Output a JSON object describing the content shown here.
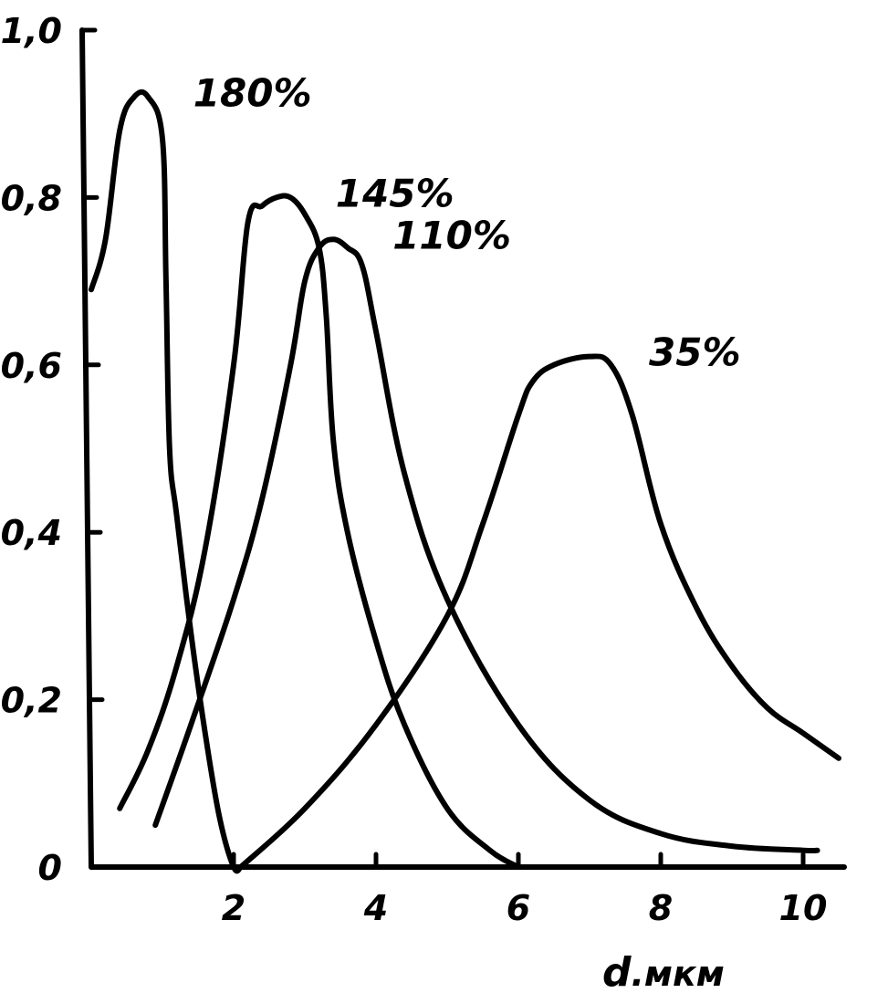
{
  "chart_data": {
    "type": "line",
    "xlabel": "d, мкм",
    "xlabel_letter": "d",
    "xlabel_unit": ".мкм",
    "ylabel": "",
    "xlim": [
      0,
      10.5
    ],
    "ylim": [
      0,
      1.0
    ],
    "grid": false,
    "x_ticks": [
      2,
      4,
      6,
      8,
      10
    ],
    "x_tick_labels": [
      "2",
      "4",
      "6",
      "8",
      "10"
    ],
    "y_ticks": [
      0,
      0.2,
      0.4,
      0.6,
      0.8,
      1.0
    ],
    "y_tick_labels": [
      "0",
      "0,2",
      "0,4",
      "0,6",
      "0,8",
      "1,0"
    ],
    "series": [
      {
        "name": "180%",
        "x": [
          0.0,
          0.2,
          0.4,
          0.6,
          0.8,
          1.0,
          1.05,
          1.1,
          1.2,
          1.4,
          1.6,
          1.8,
          2.0,
          2.1
        ],
        "y": [
          0.69,
          0.75,
          0.88,
          0.92,
          0.92,
          0.87,
          0.7,
          0.5,
          0.42,
          0.28,
          0.16,
          0.06,
          0.0,
          0.0
        ]
      },
      {
        "name": "145%",
        "x": [
          0.4,
          0.8,
          1.2,
          1.6,
          2.0,
          2.2,
          2.4,
          2.6,
          2.8,
          3.0,
          3.2,
          3.3,
          3.4,
          3.6,
          4.0,
          4.4,
          5.0,
          5.6,
          6.0
        ],
        "y": [
          0.07,
          0.14,
          0.24,
          0.38,
          0.6,
          0.77,
          0.79,
          0.8,
          0.8,
          0.78,
          0.74,
          0.66,
          0.51,
          0.4,
          0.27,
          0.17,
          0.07,
          0.02,
          0.0
        ]
      },
      {
        "name": "110%",
        "x": [
          0.9,
          1.4,
          2.0,
          2.4,
          2.8,
          3.0,
          3.2,
          3.4,
          3.6,
          3.8,
          4.0,
          4.4,
          5.0,
          6.0,
          7.0,
          8.0,
          9.0,
          10.0,
          10.2
        ],
        "y": [
          0.05,
          0.17,
          0.32,
          0.44,
          0.6,
          0.7,
          0.74,
          0.75,
          0.74,
          0.72,
          0.64,
          0.47,
          0.32,
          0.17,
          0.08,
          0.04,
          0.025,
          0.02,
          0.02
        ]
      },
      {
        "name": "35%",
        "x": [
          2.1,
          3.0,
          4.0,
          5.0,
          5.5,
          6.0,
          6.2,
          6.5,
          7.0,
          7.3,
          7.6,
          8.0,
          8.5,
          9.0,
          9.5,
          10.0,
          10.5
        ],
        "y": [
          0.0,
          0.07,
          0.17,
          0.3,
          0.41,
          0.54,
          0.58,
          0.6,
          0.61,
          0.6,
          0.54,
          0.41,
          0.31,
          0.24,
          0.19,
          0.16,
          0.13
        ]
      }
    ]
  }
}
